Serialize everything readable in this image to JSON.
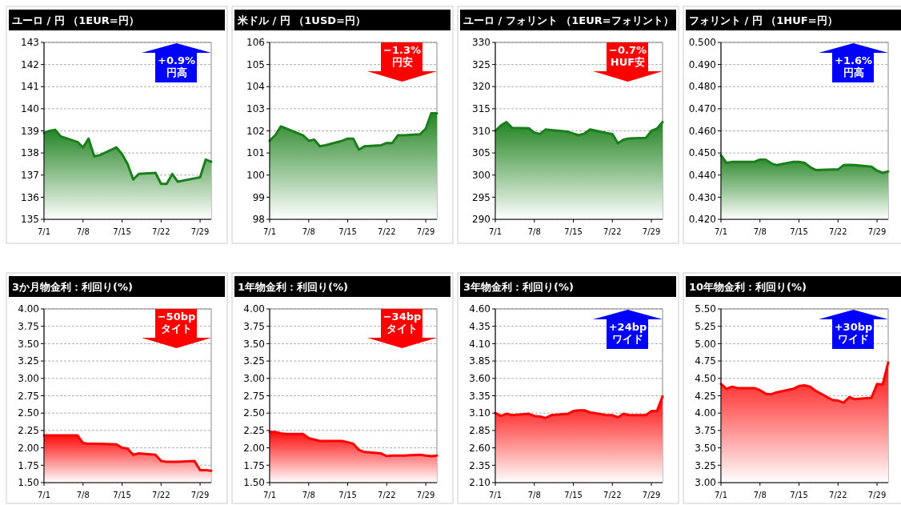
{
  "chart_data": [
    {
      "type": "area",
      "title": "ユーロ / 円 （1EUR=円）",
      "color": "#1a7f1a",
      "x": [
        "--07-01",
        "--07-02",
        "--07-03",
        "--07-04",
        "--07-07",
        "--07-08",
        "--07-09",
        "--07-10",
        "--07-11",
        "--07-14",
        "--07-15",
        "--07-16",
        "--07-17",
        "--07-18",
        "--07-21",
        "--07-22",
        "--07-23",
        "--07-24",
        "--07-25",
        "--07-28",
        "--07-29",
        "--07-30",
        "--07-31"
      ],
      "values": [
        138.9,
        139.0,
        139.05,
        138.75,
        138.5,
        138.25,
        138.65,
        137.85,
        137.9,
        138.25,
        137.95,
        137.5,
        136.8,
        137.05,
        137.1,
        136.6,
        136.6,
        137.05,
        136.7,
        136.85,
        136.9,
        137.7,
        137.6
      ],
      "xlim": [
        "--07-01",
        "--07-31"
      ],
      "xticks": [
        {
          "value": "--07-01",
          "label": "7/1"
        },
        {
          "value": "--07-08",
          "label": "7/8"
        },
        {
          "value": "--07-15",
          "label": "7/15"
        },
        {
          "value": "--07-22",
          "label": "7/22"
        },
        {
          "value": "--07-29",
          "label": "7/29"
        }
      ],
      "ylim": [
        135,
        143
      ],
      "yticks": [
        135,
        136,
        137,
        138,
        139,
        140,
        141,
        142,
        143
      ],
      "grid": "y",
      "annotations": [
        "+0.9%",
        "円高"
      ]
    },
    {
      "type": "area",
      "title": "米ドル / 円 （1USD=円）",
      "color": "#1a7f1a",
      "x": [
        "--07-01",
        "--07-02",
        "--07-03",
        "--07-04",
        "--07-07",
        "--07-08",
        "--07-09",
        "--07-10",
        "--07-11",
        "--07-14",
        "--07-15",
        "--07-16",
        "--07-17",
        "--07-18",
        "--07-21",
        "--07-22",
        "--07-23",
        "--07-24",
        "--07-25",
        "--07-28",
        "--07-29",
        "--07-30",
        "--07-31"
      ],
      "values": [
        101.55,
        101.8,
        102.2,
        102.1,
        101.8,
        101.55,
        101.6,
        101.3,
        101.35,
        101.55,
        101.65,
        101.65,
        101.15,
        101.3,
        101.35,
        101.45,
        101.45,
        101.8,
        101.8,
        101.85,
        102.1,
        102.8,
        102.8
      ],
      "xlim": [
        "--07-01",
        "--07-31"
      ],
      "xticks": [
        {
          "value": "--07-01",
          "label": "7/1"
        },
        {
          "value": "--07-08",
          "label": "7/8"
        },
        {
          "value": "--07-15",
          "label": "7/15"
        },
        {
          "value": "--07-22",
          "label": "7/22"
        },
        {
          "value": "--07-29",
          "label": "7/29"
        }
      ],
      "ylim": [
        98,
        106
      ],
      "yticks": [
        98,
        99,
        100,
        101,
        102,
        103,
        104,
        105,
        106
      ],
      "grid": "y",
      "annotations": [
        "−1.3%",
        "円安"
      ]
    },
    {
      "type": "area",
      "title": "ユーロ / フォリント （1EUR=フォリント）",
      "color": "#1a7f1a",
      "x": [
        "--07-01",
        "--07-02",
        "--07-03",
        "--07-04",
        "--07-07",
        "--07-08",
        "--07-09",
        "--07-10",
        "--07-11",
        "--07-14",
        "--07-15",
        "--07-16",
        "--07-17",
        "--07-18",
        "--07-21",
        "--07-22",
        "--07-23",
        "--07-24",
        "--07-25",
        "--07-28",
        "--07-29",
        "--07-30",
        "--07-31"
      ],
      "values": [
        310.0,
        311.2,
        312.0,
        310.7,
        310.6,
        309.6,
        309.3,
        310.3,
        310.2,
        309.8,
        309.4,
        309.0,
        309.4,
        310.3,
        309.5,
        309.3,
        307.2,
        308.0,
        308.3,
        308.4,
        310.0,
        310.5,
        312.0
      ],
      "xlim": [
        "--07-01",
        "--07-31"
      ],
      "xticks": [
        {
          "value": "--07-01",
          "label": "7/1"
        },
        {
          "value": "--07-08",
          "label": "7/8"
        },
        {
          "value": "--07-15",
          "label": "7/15"
        },
        {
          "value": "--07-22",
          "label": "7/22"
        },
        {
          "value": "--07-29",
          "label": "7/29"
        }
      ],
      "ylim": [
        290,
        330
      ],
      "yticks": [
        290,
        295,
        300,
        305,
        310,
        315,
        320,
        325,
        330
      ],
      "grid": "y",
      "annotations": [
        "−0.7%",
        "HUF安"
      ]
    },
    {
      "type": "area",
      "title": "フォリント /  円 （1HUF=円）",
      "color": "#1a7f1a",
      "x": [
        "--07-01",
        "--07-02",
        "--07-03",
        "--07-04",
        "--07-07",
        "--07-08",
        "--07-09",
        "--07-10",
        "--07-11",
        "--07-14",
        "--07-15",
        "--07-16",
        "--07-17",
        "--07-18",
        "--07-21",
        "--07-22",
        "--07-23",
        "--07-24",
        "--07-25",
        "--07-28",
        "--07-29",
        "--07-30",
        "--07-31"
      ],
      "values": [
        0.449,
        0.4455,
        0.446,
        0.446,
        0.446,
        0.447,
        0.447,
        0.4453,
        0.4445,
        0.446,
        0.446,
        0.4455,
        0.4436,
        0.4423,
        0.4425,
        0.4425,
        0.4445,
        0.4446,
        0.4445,
        0.4438,
        0.442,
        0.441,
        0.4416
      ],
      "xlim": [
        "--07-01",
        "--07-31"
      ],
      "xticks": [
        {
          "value": "--07-01",
          "label": "7/1"
        },
        {
          "value": "--07-08",
          "label": "7/8"
        },
        {
          "value": "--07-15",
          "label": "7/15"
        },
        {
          "value": "--07-22",
          "label": "7/22"
        },
        {
          "value": "--07-29",
          "label": "7/29"
        }
      ],
      "ylim": [
        0.42,
        0.5
      ],
      "yticks": [
        {
          "value": 0.42,
          "label": "0.420"
        },
        {
          "value": 0.43,
          "label": "0.430"
        },
        {
          "value": 0.44,
          "label": "0.440"
        },
        {
          "value": 0.45,
          "label": "0.450"
        },
        {
          "value": 0.46,
          "label": "0.460"
        },
        {
          "value": 0.47,
          "label": "0.470"
        },
        {
          "value": 0.48,
          "label": "0.480"
        },
        {
          "value": 0.49,
          "label": "0.490"
        },
        {
          "value": 0.5,
          "label": "0.500"
        }
      ],
      "grid": "y",
      "annotations": [
        "+1.6%",
        "円高"
      ]
    },
    {
      "type": "area",
      "title": "3か月物金利：利回り(%)",
      "color": "#ff0000",
      "x": [
        "--07-01",
        "--07-02",
        "--07-03",
        "--07-04",
        "--07-07",
        "--07-08",
        "--07-09",
        "--07-10",
        "--07-11",
        "--07-14",
        "--07-15",
        "--07-16",
        "--07-17",
        "--07-18",
        "--07-21",
        "--07-22",
        "--07-23",
        "--07-24",
        "--07-25",
        "--07-28",
        "--07-29",
        "--07-30",
        "--07-31"
      ],
      "values": [
        2.18,
        2.18,
        2.18,
        2.18,
        2.18,
        2.07,
        2.06,
        2.06,
        2.06,
        2.05,
        2.0,
        1.99,
        1.9,
        1.92,
        1.9,
        1.81,
        1.8,
        1.8,
        1.8,
        1.81,
        1.68,
        1.68,
        1.67
      ],
      "xlim": [
        "--07-01",
        "--07-31"
      ],
      "xticks": [
        {
          "value": "--07-01",
          "label": "7/1"
        },
        {
          "value": "--07-08",
          "label": "7/8"
        },
        {
          "value": "--07-15",
          "label": "7/15"
        },
        {
          "value": "--07-22",
          "label": "7/22"
        },
        {
          "value": "--07-29",
          "label": "7/29"
        }
      ],
      "ylim": [
        1.5,
        4.0
      ],
      "yticks": [
        {
          "value": 1.5,
          "label": "1.50"
        },
        {
          "value": 1.75,
          "label": "1.75"
        },
        {
          "value": 2.0,
          "label": "2.00"
        },
        {
          "value": 2.25,
          "label": "2.25"
        },
        {
          "value": 2.5,
          "label": "2.50"
        },
        {
          "value": 2.75,
          "label": "2.75"
        },
        {
          "value": 3.0,
          "label": "3.00"
        },
        {
          "value": 3.25,
          "label": "3.25"
        },
        {
          "value": 3.5,
          "label": "3.50"
        },
        {
          "value": 3.75,
          "label": "3.75"
        },
        {
          "value": 4.0,
          "label": "4.00"
        }
      ],
      "grid": "y",
      "annotations": [
        "−50bp",
        "タイト"
      ]
    },
    {
      "type": "area",
      "title": "1年物金利：利回り(%)",
      "color": "#ff0000",
      "x": [
        "--07-01",
        "--07-02",
        "--07-03",
        "--07-04",
        "--07-07",
        "--07-08",
        "--07-09",
        "--07-10",
        "--07-11",
        "--07-14",
        "--07-15",
        "--07-16",
        "--07-17",
        "--07-18",
        "--07-21",
        "--07-22",
        "--07-23",
        "--07-24",
        "--07-25",
        "--07-28",
        "--07-29",
        "--07-30",
        "--07-31"
      ],
      "values": [
        2.23,
        2.23,
        2.21,
        2.2,
        2.2,
        2.14,
        2.12,
        2.1,
        2.1,
        2.1,
        2.08,
        2.06,
        1.97,
        1.94,
        1.92,
        1.88,
        1.89,
        1.89,
        1.89,
        1.9,
        1.89,
        1.88,
        1.89
      ],
      "xlim": [
        "--07-01",
        "--07-31"
      ],
      "xticks": [
        {
          "value": "--07-01",
          "label": "7/1"
        },
        {
          "value": "--07-08",
          "label": "7/8"
        },
        {
          "value": "--07-15",
          "label": "7/15"
        },
        {
          "value": "--07-22",
          "label": "7/22"
        },
        {
          "value": "--07-29",
          "label": "7/29"
        }
      ],
      "ylim": [
        1.5,
        4.0
      ],
      "yticks": [
        {
          "value": 1.5,
          "label": "1.50"
        },
        {
          "value": 1.75,
          "label": "1.75"
        },
        {
          "value": 2.0,
          "label": "2.00"
        },
        {
          "value": 2.25,
          "label": "2.25"
        },
        {
          "value": 2.5,
          "label": "2.50"
        },
        {
          "value": 2.75,
          "label": "2.75"
        },
        {
          "value": 3.0,
          "label": "3.00"
        },
        {
          "value": 3.25,
          "label": "3.25"
        },
        {
          "value": 3.5,
          "label": "3.50"
        },
        {
          "value": 3.75,
          "label": "3.75"
        },
        {
          "value": 4.0,
          "label": "4.00"
        }
      ],
      "grid": "y",
      "annotations": [
        "−34bp",
        "タイト"
      ]
    },
    {
      "type": "area",
      "title": "3年物金利：利回り(%)",
      "color": "#ff0000",
      "x": [
        "--07-01",
        "--07-02",
        "--07-03",
        "--07-04",
        "--07-07",
        "--07-08",
        "--07-09",
        "--07-10",
        "--07-11",
        "--07-14",
        "--07-15",
        "--07-16",
        "--07-17",
        "--07-18",
        "--07-21",
        "--07-22",
        "--07-23",
        "--07-24",
        "--07-25",
        "--07-28",
        "--07-29",
        "--07-30",
        "--07-31"
      ],
      "values": [
        3.1,
        3.06,
        3.09,
        3.07,
        3.09,
        3.06,
        3.05,
        3.03,
        3.07,
        3.09,
        3.13,
        3.14,
        3.14,
        3.11,
        3.07,
        3.07,
        3.04,
        3.09,
        3.07,
        3.07,
        3.13,
        3.13,
        3.34
      ],
      "xlim": [
        "--07-01",
        "--07-31"
      ],
      "xticks": [
        {
          "value": "--07-01",
          "label": "7/1"
        },
        {
          "value": "--07-08",
          "label": "7/8"
        },
        {
          "value": "--07-15",
          "label": "7/15"
        },
        {
          "value": "--07-22",
          "label": "7/22"
        },
        {
          "value": "--07-29",
          "label": "7/29"
        }
      ],
      "ylim": [
        2.1,
        4.6
      ],
      "yticks": [
        {
          "value": 2.1,
          "label": "2.10"
        },
        2.35,
        {
          "value": 2.6,
          "label": "2.60"
        },
        2.85,
        {
          "value": 3.1,
          "label": "3.10"
        },
        3.35,
        {
          "value": 3.6,
          "label": "3.60"
        },
        3.85,
        {
          "value": 4.1,
          "label": "4.10"
        },
        4.35,
        {
          "value": 4.6,
          "label": "4.60"
        }
      ],
      "grid": "y",
      "annotations": [
        "+24bp",
        "ワイド"
      ]
    },
    {
      "type": "area",
      "title": "10年物金利：利回り(%)",
      "color": "#ff0000",
      "x": [
        "--07-01",
        "--07-02",
        "--07-03",
        "--07-04",
        "--07-07",
        "--07-08",
        "--07-09",
        "--07-10",
        "--07-11",
        "--07-14",
        "--07-15",
        "--07-16",
        "--07-17",
        "--07-18",
        "--07-21",
        "--07-22",
        "--07-23",
        "--07-24",
        "--07-25",
        "--07-28",
        "--07-29",
        "--07-30",
        "--07-31"
      ],
      "values": [
        4.42,
        4.35,
        4.38,
        4.36,
        4.36,
        4.33,
        4.28,
        4.27,
        4.3,
        4.35,
        4.39,
        4.4,
        4.38,
        4.32,
        4.19,
        4.18,
        4.15,
        4.23,
        4.2,
        4.22,
        4.42,
        4.41,
        4.73
      ],
      "xlim": [
        "--07-01",
        "--07-31"
      ],
      "xticks": [
        {
          "value": "--07-01",
          "label": "7/1"
        },
        {
          "value": "--07-08",
          "label": "7/8"
        },
        {
          "value": "--07-15",
          "label": "7/15"
        },
        {
          "value": "--07-22",
          "label": "7/22"
        },
        {
          "value": "--07-29",
          "label": "7/29"
        }
      ],
      "ylim": [
        3.0,
        5.5
      ],
      "yticks": [
        {
          "value": 3.0,
          "label": "3.00"
        },
        3.25,
        {
          "value": 3.5,
          "label": "3.50"
        },
        3.75,
        {
          "value": 4.0,
          "label": "4.00"
        },
        4.25,
        {
          "value": 4.5,
          "label": "4.50"
        },
        4.75,
        {
          "value": 5.0,
          "label": "5.00"
        },
        5.25,
        {
          "value": 5.5,
          "label": "5.50"
        }
      ],
      "grid": "y",
      "annotations": [
        "+30bp",
        "ワイド"
      ]
    }
  ]
}
